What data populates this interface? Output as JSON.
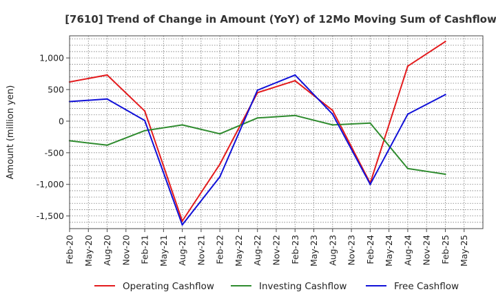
{
  "chart_data": {
    "type": "line",
    "title": "[7610]  Trend of Change in Amount (YoY) of 12Mo Moving Sum of Cashflows",
    "xlabel": "",
    "ylabel": "Amount (million yen)",
    "ylim": [
      -1700,
      1350
    ],
    "yticks": [
      1000,
      500,
      0,
      -500,
      -1000,
      -1500
    ],
    "ytick_labels": [
      "1,000",
      "500",
      "0",
      "-500",
      "-1,000",
      "-1,500"
    ],
    "categories": [
      "Feb-20",
      "May-20",
      "Aug-20",
      "Nov-20",
      "Feb-21",
      "May-21",
      "Aug-21",
      "Nov-21",
      "Feb-22",
      "May-22",
      "Aug-22",
      "Nov-22",
      "Feb-23",
      "May-23",
      "Aug-23",
      "Nov-23",
      "Feb-24",
      "May-24",
      "Aug-24",
      "Nov-24",
      "Feb-25",
      "May-25"
    ],
    "series": [
      {
        "name": "Operating Cashflow",
        "color": "#e31a1c",
        "points": [
          [
            0,
            620
          ],
          [
            2,
            730
          ],
          [
            4,
            160
          ],
          [
            6,
            -1580
          ],
          [
            8,
            -680
          ],
          [
            10,
            450
          ],
          [
            12,
            640
          ],
          [
            14,
            170
          ],
          [
            16,
            -980
          ],
          [
            18,
            870
          ],
          [
            20,
            1260
          ]
        ]
      },
      {
        "name": "Investing Cashflow",
        "color": "#2e8b2e",
        "points": [
          [
            0,
            -310
          ],
          [
            2,
            -380
          ],
          [
            4,
            -150
          ],
          [
            6,
            -60
          ],
          [
            8,
            -200
          ],
          [
            10,
            50
          ],
          [
            12,
            90
          ],
          [
            14,
            -60
          ],
          [
            16,
            -30
          ],
          [
            18,
            -750
          ],
          [
            20,
            -840
          ]
        ]
      },
      {
        "name": "Free Cashflow",
        "color": "#1010d8",
        "points": [
          [
            0,
            310
          ],
          [
            2,
            350
          ],
          [
            4,
            10
          ],
          [
            6,
            -1640
          ],
          [
            8,
            -880
          ],
          [
            10,
            490
          ],
          [
            12,
            730
          ],
          [
            14,
            110
          ],
          [
            16,
            -1000
          ],
          [
            18,
            110
          ],
          [
            20,
            420
          ]
        ]
      }
    ],
    "grid": true,
    "legend_position": "bottom"
  }
}
